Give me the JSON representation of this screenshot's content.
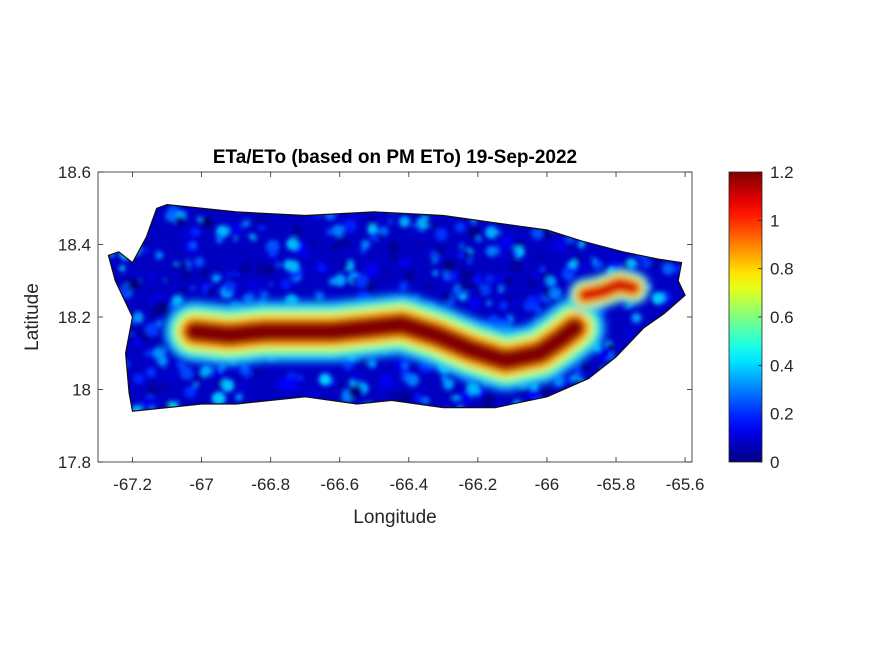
{
  "chart_data": {
    "type": "heatmap",
    "title": "ETa/ETo (based on PM ETo) 19-Sep-2022",
    "xlabel": "Longitude",
    "ylabel": "Latitude",
    "xlim": [
      -67.3,
      -65.58
    ],
    "ylim": [
      17.8,
      18.6
    ],
    "x_ticks": [
      -67.2,
      -67,
      -66.8,
      -66.6,
      -66.4,
      -66.2,
      -66,
      -65.8,
      -65.6
    ],
    "x_tick_labels": [
      "-67.2",
      "-67",
      "-66.8",
      "-66.6",
      "-66.4",
      "-66.2",
      "-66",
      "-65.8",
      "-65.6"
    ],
    "y_ticks": [
      17.8,
      18,
      18.2,
      18.4,
      18.6
    ],
    "y_tick_labels": [
      "17.8",
      "18",
      "18.2",
      "18.4",
      "18.6"
    ],
    "colorbar": {
      "colormap": "jet",
      "limits": [
        0,
        1.2
      ],
      "ticks": [
        0,
        0.2,
        0.4,
        0.6,
        0.8,
        1,
        1.2
      ],
      "tick_labels": [
        "0",
        "0.2",
        "0.4",
        "0.6",
        "0.8",
        "1",
        "1.2"
      ]
    },
    "island_outline": [
      [
        -67.27,
        18.37
      ],
      [
        -67.24,
        18.38
      ],
      [
        -67.2,
        18.35
      ],
      [
        -67.16,
        18.42
      ],
      [
        -67.13,
        18.5
      ],
      [
        -67.1,
        18.51
      ],
      [
        -66.9,
        18.49
      ],
      [
        -66.7,
        18.48
      ],
      [
        -66.5,
        18.49
      ],
      [
        -66.3,
        18.48
      ],
      [
        -66.15,
        18.46
      ],
      [
        -66.0,
        18.44
      ],
      [
        -65.9,
        18.41
      ],
      [
        -65.78,
        18.38
      ],
      [
        -65.68,
        18.36
      ],
      [
        -65.61,
        18.35
      ],
      [
        -65.62,
        18.3
      ],
      [
        -65.6,
        18.26
      ],
      [
        -65.66,
        18.21
      ],
      [
        -65.72,
        18.17
      ],
      [
        -65.8,
        18.09
      ],
      [
        -65.88,
        18.03
      ],
      [
        -66.0,
        17.98
      ],
      [
        -66.15,
        17.95
      ],
      [
        -66.3,
        17.95
      ],
      [
        -66.45,
        17.97
      ],
      [
        -66.55,
        17.96
      ],
      [
        -66.7,
        17.98
      ],
      [
        -66.9,
        17.96
      ],
      [
        -67.0,
        17.96
      ],
      [
        -67.1,
        17.95
      ],
      [
        -67.2,
        17.94
      ],
      [
        -67.21,
        17.99
      ],
      [
        -67.22,
        18.1
      ],
      [
        -67.2,
        18.2
      ],
      [
        -67.25,
        18.3
      ],
      [
        -67.27,
        18.37
      ]
    ],
    "high_ratio_bands": [
      {
        "name": "",
        "path": [
          [
            -67.02,
            18.16
          ],
          [
            -66.92,
            18.15
          ],
          [
            -66.82,
            18.16
          ],
          [
            -66.72,
            18.16
          ],
          [
            -66.62,
            18.16
          ],
          [
            -66.52,
            18.17
          ],
          [
            -66.42,
            18.18
          ],
          [
            -66.32,
            18.15
          ],
          [
            -66.22,
            18.11
          ],
          [
            -66.12,
            18.08
          ],
          [
            -66.02,
            18.1
          ],
          [
            -65.96,
            18.14
          ],
          [
            -65.92,
            18.17
          ]
        ],
        "peak_value": 1.2
      },
      {
        "name": "",
        "path": [
          [
            -65.89,
            18.26
          ],
          [
            -65.84,
            18.27
          ],
          [
            -65.79,
            18.29
          ],
          [
            -65.75,
            18.28
          ]
        ],
        "peak_value": 1.1
      }
    ],
    "background_value_range": [
      0,
      0.4
    ],
    "grid": false,
    "legend": "colorbar-right"
  }
}
